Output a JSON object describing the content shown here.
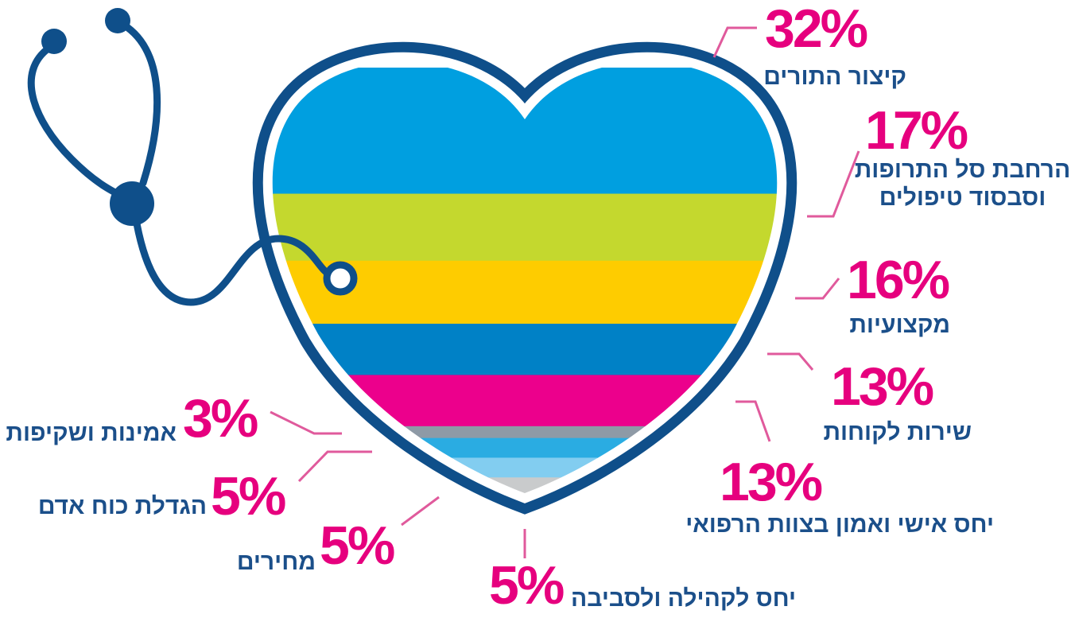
{
  "chart_data": {
    "type": "heart",
    "categories": [
      "קיצור התורים",
      "הרחבת סל התרופות וסבסוד טיפולים",
      "מקצועיות",
      "שירות לקוחות",
      "יחס אישי ואמון בצוות הרפואי",
      "אמינות ושקיפות",
      "הגדלת כוח אדם",
      "מחירים",
      "יחס לקהילה ולסביבה"
    ],
    "values": [
      32,
      17,
      16,
      13,
      13,
      3,
      5,
      5,
      5
    ],
    "value_labels": [
      "32%",
      "17%",
      "16%",
      "13%",
      "13%",
      "3%",
      "5%",
      "5%",
      "5%"
    ],
    "colors": [
      "#009fe0",
      "#c4d82e",
      "#fecc00",
      "#0081c6",
      "#ec008c",
      "#8e9aa6",
      "#2aace2",
      "#82cdf0",
      "#c9cbcc"
    ]
  }
}
